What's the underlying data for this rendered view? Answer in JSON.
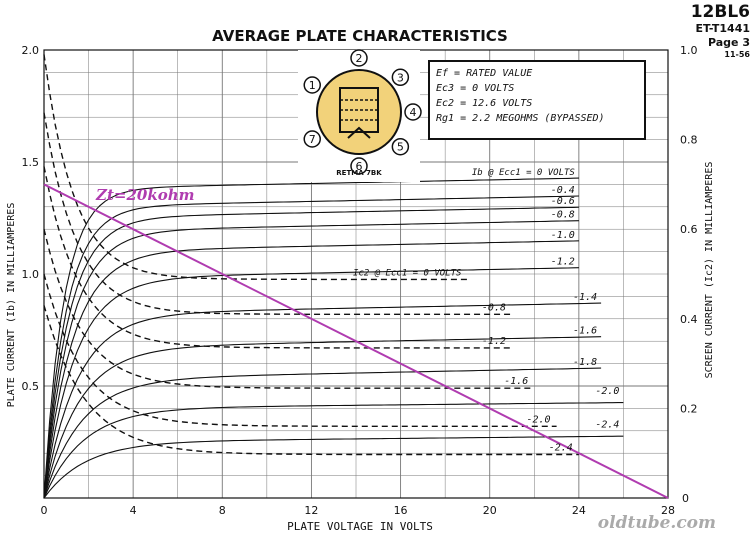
{
  "header": {
    "tube": "12BL6",
    "code": "ET-T1441",
    "page": "Page 3",
    "date": "11-56"
  },
  "conditions": [
    "Ef = RATED VALUE",
    "Ec3 = 0 VOLTS",
    "Ec2 = 12.6 VOLTS",
    "Rg1 = 2.2 MEGOHMS (BYPASSED)"
  ],
  "basing": {
    "label": "RETMA 7BK",
    "pins": [
      "1",
      "2",
      "3",
      "4",
      "5",
      "6",
      "7"
    ]
  },
  "load_line_label": "Zt=20kohm",
  "watermark": "oldtube.com",
  "colors": {
    "curve": "#111111",
    "grid": "#777777",
    "load_line": "#b03cb0"
  },
  "chart_data": {
    "type": "line",
    "title": "AVERAGE PLATE CHARACTERISTICS",
    "xlabel": "PLATE VOLTAGE IN VOLTS",
    "ylabel": "PLATE CURRENT (Ib) IN MILLIAMPERES",
    "y2label": "SCREEN CURRENT (Ic2) IN MILLIAMPERES",
    "xlim": [
      0,
      28
    ],
    "ylim": [
      0,
      2.0
    ],
    "y2lim": [
      0,
      1.0
    ],
    "xticks": [
      "0",
      "4",
      "8",
      "12",
      "16",
      "20",
      "24",
      "28"
    ],
    "yticks": [
      "0.5",
      "1.0",
      "1.5",
      "2.0"
    ],
    "y2ticks": [
      "0.2",
      "0.4",
      "0.6",
      "0.8",
      "1.0"
    ],
    "grid": true,
    "plate_curves": [
      {
        "label": "Ib @ Ecc1 = 0 VOLTS",
        "sat": 1.38,
        "slope": 0.002,
        "end_x": 24
      },
      {
        "label": "-0.4",
        "sat": 1.3,
        "slope": 0.002,
        "end_x": 24
      },
      {
        "label": "-0.6",
        "sat": 1.25,
        "slope": 0.002,
        "end_x": 24
      },
      {
        "label": "-0.8",
        "sat": 1.19,
        "slope": 0.002,
        "end_x": 24
      },
      {
        "label": "-1.0",
        "sat": 1.1,
        "slope": 0.002,
        "end_x": 24
      },
      {
        "label": "-1.2",
        "sat": 0.98,
        "slope": 0.002,
        "end_x": 24
      },
      {
        "label": "-1.4",
        "sat": 0.82,
        "slope": 0.002,
        "end_x": 25
      },
      {
        "label": "-1.6",
        "sat": 0.67,
        "slope": 0.002,
        "end_x": 25
      },
      {
        "label": "-1.8",
        "sat": 0.53,
        "slope": 0.002,
        "end_x": 25
      },
      {
        "label": "-2.0",
        "sat": 0.4,
        "slope": 0.002,
        "end_x": 26
      },
      {
        "label": "-2.4",
        "sat": 0.25,
        "slope": 0.002,
        "end_x": 26
      }
    ],
    "screen_curves": [
      {
        "label": "Ic2 @ Ecc1 = 0 VOLTS",
        "y0": 0.99,
        "tail": 0.488,
        "end_x": 19
      },
      {
        "label": "-0.8",
        "y0": 0.86,
        "tail": 0.41,
        "end_x": 21
      },
      {
        "label": "-1.2",
        "y0": 0.74,
        "tail": 0.335,
        "end_x": 21
      },
      {
        "label": "-1.6",
        "y0": 0.6,
        "tail": 0.245,
        "end_x": 22
      },
      {
        "label": "-2.0",
        "y0": 0.5,
        "tail": 0.16,
        "end_x": 23
      },
      {
        "label": "-2.4",
        "y0": 0.43,
        "tail": 0.097,
        "end_x": 24
      }
    ],
    "load_line": {
      "label": "Zt=20kohm",
      "x": [
        0,
        28
      ],
      "y": [
        1.4,
        0
      ]
    }
  }
}
